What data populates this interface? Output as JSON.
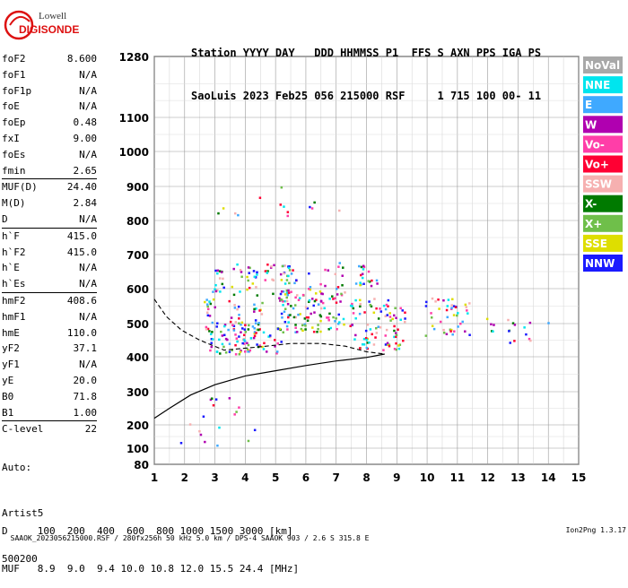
{
  "logo": {
    "line1": "Lowell",
    "line2": "DIGISONDE"
  },
  "header": {
    "line1": "Station YYYY DAY   DDD HHMMSS P1  FFS S AXN PPS IGA PS",
    "line2": "SaoLuis 2023 Feb25 056 215000 RSF     1 715 100 00- 11"
  },
  "params": [
    {
      "key": "foF2",
      "value": "8.600"
    },
    {
      "key": "foF1",
      "value": "N/A"
    },
    {
      "key": "foF1p",
      "value": "N/A"
    },
    {
      "key": "foE",
      "value": "N/A"
    },
    {
      "key": "foEp",
      "value": "0.48"
    },
    {
      "key": "fxI",
      "value": "9.00"
    },
    {
      "key": "foEs",
      "value": "N/A"
    },
    {
      "key": "fmin",
      "value": "2.65"
    },
    {
      "key": "MUF(D)",
      "value": "24.40"
    },
    {
      "key": "M(D)",
      "value": "2.84"
    },
    {
      "key": "D",
      "value": "N/A"
    },
    {
      "key": "h`F",
      "value": "415.0"
    },
    {
      "key": "h`F2",
      "value": "415.0"
    },
    {
      "key": "h`E",
      "value": "N/A"
    },
    {
      "key": "h`Es",
      "value": "N/A"
    },
    {
      "key": "hmF2",
      "value": "408.6"
    },
    {
      "key": "hmF1",
      "value": "N/A"
    },
    {
      "key": "hmE",
      "value": "110.0"
    },
    {
      "key": "yF2",
      "value": "37.1"
    },
    {
      "key": "yF1",
      "value": "N/A"
    },
    {
      "key": "yE",
      "value": "20.0"
    },
    {
      "key": "B0",
      "value": "71.8"
    },
    {
      "key": "B1",
      "value": "1.00"
    },
    {
      "key": "C-level",
      "value": "22"
    }
  ],
  "auto": {
    "line1": "Auto:",
    "line2": "Artist5",
    "line3": "500200"
  },
  "bottom": {
    "d_line": "D     100  200  400  600  800 1000 1500 3000 [km]",
    "muf_line": "MUF   8.9  9.0  9.4 10.0 10.8 12.0 15.5 24.4 [MHz]"
  },
  "footer": {
    "left": "SAAOK_2023056215000.RSF / 280fx256h 50 kHz 5.0 km / DPS-4 SAAOK 903 / 2.6 S 315.8 E",
    "right": "Ion2Png 1.3.17"
  },
  "chart_data": {
    "type": "scatter",
    "title": "",
    "xlabel": "",
    "ylabel": "",
    "xlim": [
      1,
      15
    ],
    "ylim": [
      80,
      1300
    ],
    "y_scale": "log-like ionogram height scale",
    "x_ticks": [
      "1",
      "2",
      "3",
      "4",
      "5",
      "6",
      "7",
      "8",
      "9",
      "10",
      "11",
      "12",
      "13",
      "14",
      "15"
    ],
    "y_ticks": [
      "80",
      "100",
      "200",
      "300",
      "400",
      "500",
      "600",
      "700",
      "800",
      "900",
      "1000",
      "1100",
      "1280"
    ],
    "grid": true,
    "legend_position": "right",
    "legend": [
      {
        "name": "NoVal",
        "color": "#a8a8a8"
      },
      {
        "name": "NNE",
        "color": "#00e5ee"
      },
      {
        "name": "E",
        "color": "#3fa9ff"
      },
      {
        "name": "W",
        "color": "#b000b0"
      },
      {
        "name": "Vo-",
        "color": "#ff3ea8"
      },
      {
        "name": "Vo+",
        "color": "#ff0033"
      },
      {
        "name": "SSW",
        "color": "#f6b0b0"
      },
      {
        "name": "X-",
        "color": "#007a00"
      },
      {
        "name": "X+",
        "color": "#6fbf4a"
      },
      {
        "name": "SSE",
        "color": "#dede00"
      },
      {
        "name": "NNW",
        "color": "#1a1aff"
      }
    ],
    "echo_clusters": [
      {
        "x": [
          2.9,
          3.2,
          3.5,
          3.8,
          4.1,
          4.4,
          4.7,
          5.0
        ],
        "y": 460,
        "dy": 50,
        "count": 90
      },
      {
        "x": [
          2.8,
          3.6,
          4.4,
          5.2,
          5.8,
          6.3,
          6.9
        ],
        "y": 535,
        "dy": 60,
        "count": 110
      },
      {
        "x": [
          3.1,
          3.7,
          4.2,
          4.8,
          5.3
        ],
        "y": 630,
        "dy": 45,
        "count": 70
      },
      {
        "x": [
          5.5,
          6.1,
          6.6,
          7.1
        ],
        "y": 590,
        "dy": 90,
        "count": 70
      },
      {
        "x": [
          7.6,
          7.9,
          8.2,
          8.5,
          8.8,
          9.1
        ],
        "y": 500,
        "dy": 80,
        "count": 90
      },
      {
        "x": [
          7.8,
          8.2
        ],
        "y": 640,
        "dy": 30,
        "count": 20
      },
      {
        "x": [
          10.1,
          10.5,
          10.9,
          11.2
        ],
        "y": 520,
        "dy": 55,
        "count": 45
      },
      {
        "x": [
          12.0,
          12.7,
          13.2,
          14.0
        ],
        "y": 480,
        "dy": 40,
        "count": 18
      },
      {
        "x": [
          3.1,
          3.6,
          4.3,
          5.2,
          6.2,
          7.0
        ],
        "y": 860,
        "dy": 50,
        "count": 14
      },
      {
        "x": [
          2.0,
          2.6,
          3.0,
          3.6,
          4.2
        ],
        "y": 200,
        "dy": 90,
        "count": 18
      }
    ],
    "profile_curve": [
      [
        1.0,
        220
      ],
      [
        1.5,
        250
      ],
      [
        2.2,
        290
      ],
      [
        3.0,
        320
      ],
      [
        4.0,
        345
      ],
      [
        5.0,
        360
      ],
      [
        6.0,
        375
      ],
      [
        7.0,
        388
      ],
      [
        8.0,
        398
      ],
      [
        8.6,
        408
      ]
    ],
    "trace_curve": [
      [
        1.0,
        570
      ],
      [
        1.4,
        520
      ],
      [
        1.9,
        480
      ],
      [
        2.5,
        450
      ],
      [
        3.3,
        420
      ],
      [
        4.5,
        430
      ],
      [
        5.5,
        440
      ],
      [
        6.5,
        440
      ],
      [
        7.3,
        432
      ],
      [
        8.0,
        415
      ],
      [
        8.6,
        408
      ]
    ]
  }
}
